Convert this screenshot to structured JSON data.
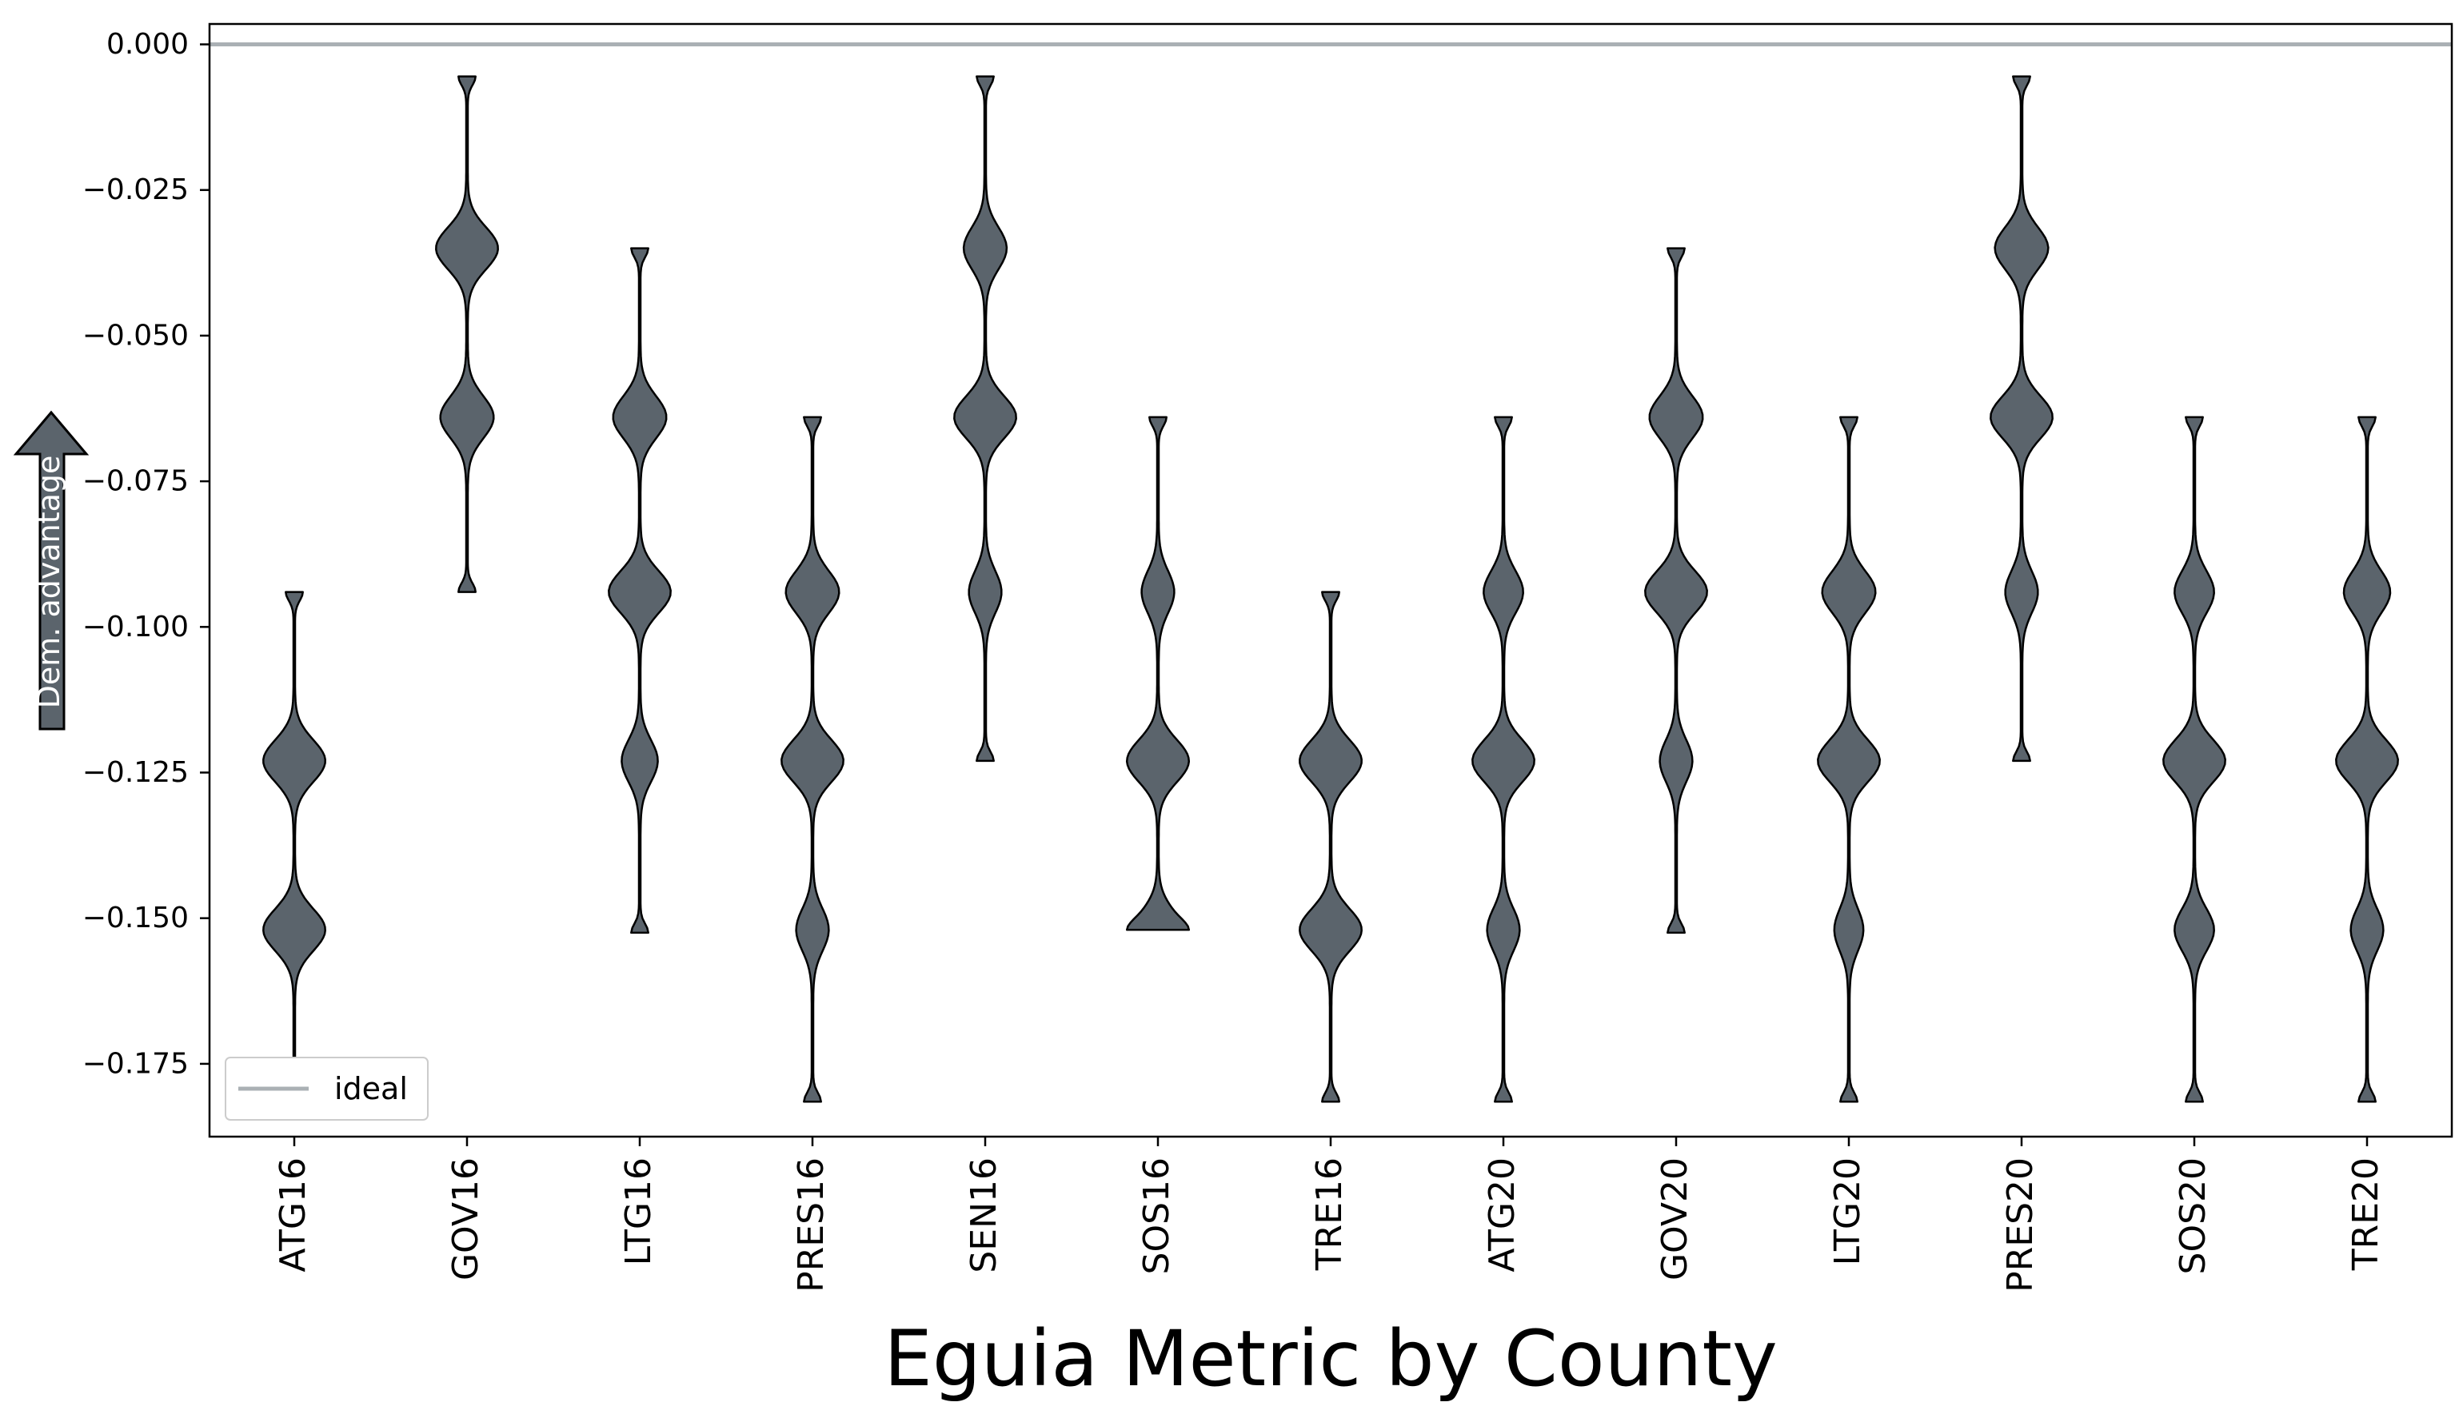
{
  "chart_data": {
    "type": "violin",
    "xlabel": "Eguia Metric by County",
    "ylabel": "Dem. advantage",
    "ylim": [
      -0.1875,
      0.0035
    ],
    "yticks": [
      0.0,
      -0.025,
      -0.05,
      -0.075,
      -0.1,
      -0.125,
      -0.15,
      -0.175
    ],
    "ytick_labels": [
      "0.000",
      "−0.025",
      "−0.050",
      "−0.075",
      "−0.100",
      "−0.125",
      "−0.150",
      "−0.175"
    ],
    "ideal_line": {
      "y": 0.0,
      "color": "#aab0b4",
      "label": "ideal"
    },
    "legend": {
      "position": "lower-left",
      "entries": [
        "ideal"
      ]
    },
    "violin_color": "#5b646c",
    "edge_color": "#000000",
    "categories": [
      "ATG16",
      "GOV16",
      "LTG16",
      "PRES16",
      "SEN16",
      "SOS16",
      "TRE16",
      "ATG20",
      "GOV20",
      "LTG20",
      "PRES20",
      "SOS20",
      "TRE20"
    ],
    "violins": [
      {
        "category": "ATG16",
        "min": -0.1815,
        "max": -0.094,
        "modes": [
          {
            "y": -0.123,
            "w": 0.35
          },
          {
            "y": -0.152,
            "w": 0.35
          }
        ]
      },
      {
        "category": "GOV16",
        "min": -0.094,
        "max": -0.0055,
        "modes": [
          {
            "y": -0.035,
            "w": 0.35
          },
          {
            "y": -0.064,
            "w": 0.3
          }
        ]
      },
      {
        "category": "LTG16",
        "min": -0.1525,
        "max": -0.035,
        "modes": [
          {
            "y": -0.064,
            "w": 0.3
          },
          {
            "y": -0.094,
            "w": 0.35
          },
          {
            "y": -0.123,
            "w": 0.2
          }
        ]
      },
      {
        "category": "PRES16",
        "min": -0.1815,
        "max": -0.064,
        "modes": [
          {
            "y": -0.094,
            "w": 0.3
          },
          {
            "y": -0.123,
            "w": 0.35
          },
          {
            "y": -0.152,
            "w": 0.18
          }
        ]
      },
      {
        "category": "SEN16",
        "min": -0.123,
        "max": -0.0055,
        "modes": [
          {
            "y": -0.035,
            "w": 0.24
          },
          {
            "y": -0.064,
            "w": 0.35
          },
          {
            "y": -0.094,
            "w": 0.18
          }
        ]
      },
      {
        "category": "SOS16",
        "min": -0.152,
        "max": -0.064,
        "modes": [
          {
            "y": -0.094,
            "w": 0.18
          },
          {
            "y": -0.123,
            "w": 0.35
          },
          {
            "y": -0.152,
            "w": 0.26
          }
        ]
      },
      {
        "category": "TRE16",
        "min": -0.1815,
        "max": -0.094,
        "modes": [
          {
            "y": -0.123,
            "w": 0.35
          },
          {
            "y": -0.152,
            "w": 0.35
          }
        ]
      },
      {
        "category": "ATG20",
        "min": -0.1815,
        "max": -0.064,
        "modes": [
          {
            "y": -0.094,
            "w": 0.22
          },
          {
            "y": -0.123,
            "w": 0.35
          },
          {
            "y": -0.152,
            "w": 0.18
          }
        ]
      },
      {
        "category": "GOV20",
        "min": -0.1525,
        "max": -0.035,
        "modes": [
          {
            "y": -0.064,
            "w": 0.3
          },
          {
            "y": -0.094,
            "w": 0.35
          },
          {
            "y": -0.123,
            "w": 0.18
          }
        ]
      },
      {
        "category": "LTG20",
        "min": -0.1815,
        "max": -0.064,
        "modes": [
          {
            "y": -0.094,
            "w": 0.3
          },
          {
            "y": -0.123,
            "w": 0.35
          },
          {
            "y": -0.152,
            "w": 0.16
          }
        ]
      },
      {
        "category": "PRES20",
        "min": -0.123,
        "max": -0.0055,
        "modes": [
          {
            "y": -0.035,
            "w": 0.3
          },
          {
            "y": -0.064,
            "w": 0.35
          },
          {
            "y": -0.094,
            "w": 0.18
          }
        ]
      },
      {
        "category": "SOS20",
        "min": -0.1815,
        "max": -0.064,
        "modes": [
          {
            "y": -0.094,
            "w": 0.22
          },
          {
            "y": -0.123,
            "w": 0.35
          },
          {
            "y": -0.152,
            "w": 0.22
          }
        ]
      },
      {
        "category": "TRE20",
        "min": -0.1815,
        "max": -0.064,
        "modes": [
          {
            "y": -0.094,
            "w": 0.26
          },
          {
            "y": -0.123,
            "w": 0.35
          },
          {
            "y": -0.152,
            "w": 0.18
          }
        ]
      }
    ]
  }
}
